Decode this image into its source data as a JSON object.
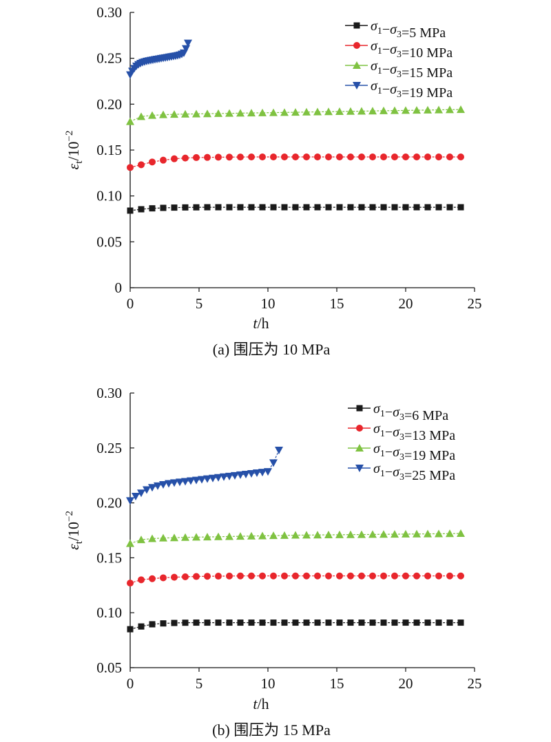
{
  "chart_data": [
    {
      "type": "line",
      "caption": "(a) 围压为 10 MPa",
      "xlabel": "t/h",
      "ylabel": "εt/10−2",
      "xlim": [
        0,
        25
      ],
      "ylim": [
        0,
        0.3
      ],
      "xticks": [
        "0",
        "5",
        "10",
        "15",
        "20",
        "25"
      ],
      "yticks": [
        "0",
        "0.05",
        "0.10",
        "0.15",
        "0.20",
        "0.25",
        "0.30"
      ],
      "legend_position": "top-right",
      "series": [
        {
          "name": "σ1−σ3=5 MPa",
          "color": "#1a1a1a",
          "marker": "square",
          "x": [
            0,
            0.8,
            1.6,
            2.4,
            3.2,
            4,
            4.8,
            5.6,
            6.4,
            7.2,
            8,
            8.8,
            9.6,
            10.4,
            11.2,
            12,
            12.8,
            13.6,
            14.4,
            15.2,
            16,
            16.8,
            17.6,
            18.4,
            19.2,
            20,
            20.8,
            21.6,
            22.4,
            23.2,
            24
          ],
          "y": [
            0.084,
            0.0855,
            0.0865,
            0.087,
            0.0873,
            0.0875,
            0.0876,
            0.0877,
            0.0877,
            0.0877,
            0.0877,
            0.0877,
            0.0877,
            0.0877,
            0.0877,
            0.0877,
            0.0877,
            0.0877,
            0.0877,
            0.0877,
            0.0877,
            0.0877,
            0.0877,
            0.0877,
            0.0877,
            0.0877,
            0.0877,
            0.0877,
            0.0877,
            0.0877,
            0.0877
          ]
        },
        {
          "name": "σ1−σ3=10 MPa",
          "color": "#e8262c",
          "marker": "circle",
          "x": [
            0,
            0.8,
            1.6,
            2.4,
            3.2,
            4,
            4.8,
            5.6,
            6.4,
            7.2,
            8,
            8.8,
            9.6,
            10.4,
            11.2,
            12,
            12.8,
            13.6,
            14.4,
            15.2,
            16,
            16.8,
            17.6,
            18.4,
            19.2,
            20,
            20.8,
            21.6,
            22.4,
            23.2,
            24
          ],
          "y": [
            0.131,
            0.134,
            0.137,
            0.139,
            0.1405,
            0.1413,
            0.1418,
            0.142,
            0.1422,
            0.1423,
            0.1424,
            0.1425,
            0.1425,
            0.1425,
            0.1425,
            0.1425,
            0.1425,
            0.1425,
            0.1425,
            0.1425,
            0.1425,
            0.1425,
            0.1425,
            0.1425,
            0.1425,
            0.1425,
            0.1425,
            0.1425,
            0.1425,
            0.1425,
            0.1425
          ]
        },
        {
          "name": "σ1−σ3=15 MPa",
          "color": "#7fc241",
          "marker": "triangle-up",
          "x": [
            0,
            0.8,
            1.6,
            2.4,
            3.2,
            4,
            4.8,
            5.6,
            6.4,
            7.2,
            8,
            8.8,
            9.6,
            10.4,
            11.2,
            12,
            12.8,
            13.6,
            14.4,
            15.2,
            16,
            16.8,
            17.6,
            18.4,
            19.2,
            20,
            20.8,
            21.6,
            22.4,
            23.2,
            24
          ],
          "y": [
            0.181,
            0.1865,
            0.1878,
            0.1885,
            0.1889,
            0.1892,
            0.1894,
            0.1896,
            0.1898,
            0.19,
            0.1902,
            0.1904,
            0.1906,
            0.1908,
            0.191,
            0.1912,
            0.1914,
            0.1916,
            0.1918,
            0.192,
            0.1922,
            0.1924,
            0.1926,
            0.1928,
            0.193,
            0.1932,
            0.1934,
            0.1936,
            0.1938,
            0.194,
            0.1942
          ]
        },
        {
          "name": "σ1−σ3=19 MPa",
          "color": "#2650a8",
          "marker": "triangle-down",
          "x": [
            0,
            0.15,
            0.3,
            0.45,
            0.6,
            0.75,
            0.9,
            1.05,
            1.2,
            1.35,
            1.5,
            1.65,
            1.8,
            1.95,
            2.1,
            2.25,
            2.4,
            2.55,
            2.7,
            2.85,
            3,
            3.15,
            3.3,
            3.45,
            3.6,
            3.75,
            3.9,
            4.05,
            4.2
          ],
          "y": [
            0.232,
            0.236,
            0.239,
            0.2415,
            0.2432,
            0.2445,
            0.2455,
            0.2462,
            0.2468,
            0.2473,
            0.2478,
            0.2482,
            0.2486,
            0.249,
            0.2494,
            0.2498,
            0.2502,
            0.2506,
            0.251,
            0.2514,
            0.2518,
            0.2522,
            0.2526,
            0.253,
            0.2536,
            0.2545,
            0.2558,
            0.2605,
            0.2665
          ]
        }
      ]
    },
    {
      "type": "line",
      "caption": "(b) 围压为 15 MPa",
      "xlabel": "t/h",
      "ylabel": "εt/10−2",
      "xlim": [
        0,
        25
      ],
      "ylim": [
        0.05,
        0.3
      ],
      "xticks": [
        "0",
        "5",
        "10",
        "15",
        "20",
        "25"
      ],
      "yticks": [
        "0.05",
        "0.10",
        "0.15",
        "0.20",
        "0.25",
        "0.30"
      ],
      "legend_position": "top-right",
      "series": [
        {
          "name": "σ1−σ3=6 MPa",
          "color": "#1a1a1a",
          "marker": "square",
          "x": [
            0,
            0.8,
            1.6,
            2.4,
            3.2,
            4,
            4.8,
            5.6,
            6.4,
            7.2,
            8,
            8.8,
            9.6,
            10.4,
            11.2,
            12,
            12.8,
            13.6,
            14.4,
            15.2,
            16,
            16.8,
            17.6,
            18.4,
            19.2,
            20,
            20.8,
            21.6,
            22.4,
            23.2,
            24
          ],
          "y": [
            0.085,
            0.0875,
            0.0895,
            0.0903,
            0.0907,
            0.0909,
            0.091,
            0.091,
            0.091,
            0.091,
            0.091,
            0.091,
            0.091,
            0.091,
            0.091,
            0.091,
            0.091,
            0.091,
            0.091,
            0.091,
            0.091,
            0.091,
            0.091,
            0.091,
            0.091,
            0.091,
            0.091,
            0.091,
            0.091,
            0.091,
            0.091
          ]
        },
        {
          "name": "σ1−σ3=13 MPa",
          "color": "#e8262c",
          "marker": "circle",
          "x": [
            0,
            0.8,
            1.6,
            2.4,
            3.2,
            4,
            4.8,
            5.6,
            6.4,
            7.2,
            8,
            8.8,
            9.6,
            10.4,
            11.2,
            12,
            12.8,
            13.6,
            14.4,
            15.2,
            16,
            16.8,
            17.6,
            18.4,
            19.2,
            20,
            20.8,
            21.6,
            22.4,
            23.2,
            24
          ],
          "y": [
            0.127,
            0.13,
            0.131,
            0.1318,
            0.1323,
            0.1327,
            0.133,
            0.1332,
            0.1333,
            0.1334,
            0.1335,
            0.1335,
            0.1335,
            0.1335,
            0.1335,
            0.1335,
            0.1335,
            0.1335,
            0.1335,
            0.1335,
            0.1335,
            0.1335,
            0.1335,
            0.1335,
            0.1335,
            0.1335,
            0.1335,
            0.1335,
            0.1335,
            0.1335,
            0.1335
          ]
        },
        {
          "name": "σ1−σ3=19 MPa",
          "color": "#7fc241",
          "marker": "triangle-up",
          "x": [
            0,
            0.8,
            1.6,
            2.4,
            3.2,
            4,
            4.8,
            5.6,
            6.4,
            7.2,
            8,
            8.8,
            9.6,
            10.4,
            11.2,
            12,
            12.8,
            13.6,
            14.4,
            15.2,
            16,
            16.8,
            17.6,
            18.4,
            19.2,
            20,
            20.8,
            21.6,
            22.4,
            23.2,
            24
          ],
          "y": [
            0.163,
            0.1665,
            0.1675,
            0.168,
            0.1683,
            0.1686,
            0.1688,
            0.169,
            0.1692,
            0.1694,
            0.1696,
            0.1698,
            0.17,
            0.1702,
            0.1704,
            0.1706,
            0.1707,
            0.1708,
            0.1709,
            0.171,
            0.1711,
            0.1712,
            0.1713,
            0.1714,
            0.1715,
            0.1716,
            0.1717,
            0.1718,
            0.1719,
            0.172,
            0.1722
          ]
        },
        {
          "name": "σ1−σ3=25 MPa",
          "color": "#2650a8",
          "marker": "triangle-down",
          "x": [
            0,
            0.4,
            0.8,
            1.2,
            1.6,
            2,
            2.4,
            2.8,
            3.2,
            3.6,
            4,
            4.4,
            4.8,
            5.2,
            5.6,
            6,
            6.4,
            6.8,
            7.2,
            7.6,
            8,
            8.4,
            8.8,
            9.2,
            9.6,
            10,
            10.4,
            10.8
          ],
          "y": [
            0.202,
            0.206,
            0.209,
            0.212,
            0.214,
            0.2155,
            0.2167,
            0.2176,
            0.2183,
            0.2189,
            0.2195,
            0.2201,
            0.2207,
            0.2213,
            0.2219,
            0.2225,
            0.2231,
            0.2237,
            0.2243,
            0.2249,
            0.2255,
            0.2261,
            0.2267,
            0.2273,
            0.2279,
            0.2285,
            0.2365,
            0.248
          ]
        }
      ]
    }
  ]
}
